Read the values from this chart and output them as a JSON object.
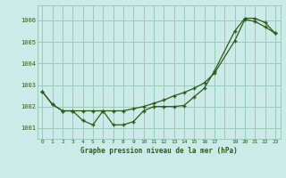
{
  "title": "Graphe pression niveau de la mer (hPa)",
  "bg_color": "#cceae8",
  "grid_color": "#99ccbb",
  "line_color": "#2d5a1b",
  "xlim": [
    -0.5,
    23.5
  ],
  "ylim": [
    1000.5,
    1006.7
  ],
  "yticks": [
    1001,
    1002,
    1003,
    1004,
    1005,
    1006
  ],
  "xticks": [
    0,
    1,
    2,
    3,
    4,
    5,
    6,
    7,
    8,
    9,
    10,
    11,
    12,
    13,
    14,
    15,
    16,
    17,
    18,
    19,
    20,
    21,
    22,
    23
  ],
  "xtick_labels": [
    "0",
    "1",
    "2",
    "3",
    "4",
    "5",
    "6",
    "7",
    "8",
    "9",
    "10",
    "11",
    "12",
    "13",
    "14",
    "15",
    "16",
    "17",
    "",
    "19",
    "20",
    "21",
    "22",
    "23"
  ],
  "series1_x": [
    0,
    1,
    2,
    3,
    4,
    5,
    6,
    7,
    8,
    9,
    10,
    11,
    12,
    13,
    14,
    15,
    16,
    17,
    19,
    20,
    21,
    22,
    23
  ],
  "series1_y": [
    1002.7,
    1002.1,
    1001.8,
    1001.8,
    1001.35,
    1001.15,
    1001.8,
    1001.15,
    1001.15,
    1001.3,
    1001.8,
    1002.0,
    1002.0,
    1002.0,
    1002.05,
    1002.45,
    1002.85,
    1003.65,
    1005.5,
    1006.1,
    1006.1,
    1005.9,
    1005.4
  ],
  "series2_x": [
    0,
    1,
    2,
    3,
    4,
    5,
    6,
    7,
    8,
    9,
    10,
    11,
    12,
    13,
    14,
    15,
    16,
    17,
    19,
    20,
    21,
    22,
    23
  ],
  "series2_y": [
    1002.7,
    1002.1,
    1001.8,
    1001.8,
    1001.8,
    1001.8,
    1001.8,
    1001.8,
    1001.8,
    1001.9,
    1002.0,
    1002.15,
    1002.3,
    1002.5,
    1002.65,
    1002.85,
    1003.1,
    1003.55,
    1005.05,
    1006.05,
    1005.95,
    1005.7,
    1005.4
  ]
}
